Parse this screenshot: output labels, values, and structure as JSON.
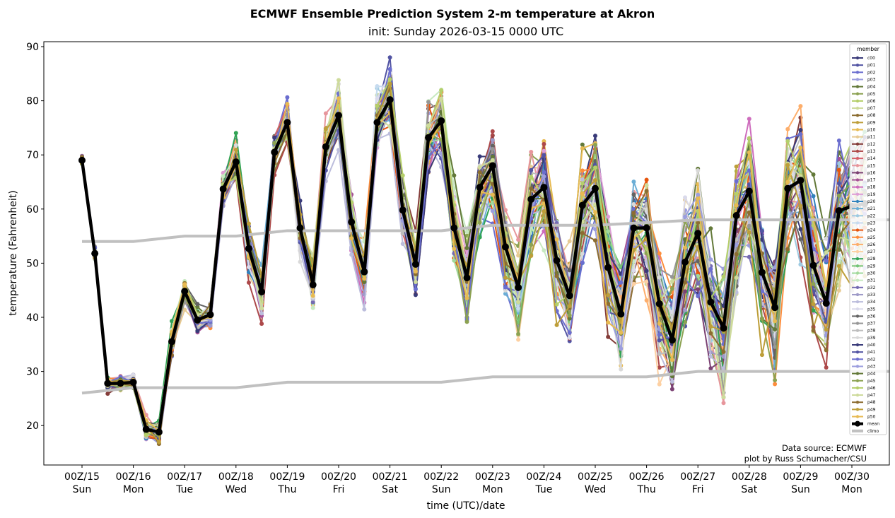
{
  "chart_data": {
    "type": "line",
    "title": "ECMWF Ensemble Prediction System 2-m temperature at Akron",
    "subtitle": "init: Sunday 2026-03-15 0000 UTC",
    "xlabel": "time (UTC)/date",
    "ylabel": "temperature (Fahrenheit)",
    "ylim": [
      13,
      91
    ],
    "xlim_days": [
      -0.6,
      15.9
    ],
    "yticks": [
      20,
      30,
      40,
      50,
      60,
      70,
      80,
      90
    ],
    "xticks": [
      {
        "day": 0,
        "top": "00Z/15",
        "bottom": "Sun"
      },
      {
        "day": 1,
        "top": "00Z/16",
        "bottom": "Mon"
      },
      {
        "day": 2,
        "top": "00Z/17",
        "bottom": "Tue"
      },
      {
        "day": 3,
        "top": "00Z/18",
        "bottom": "Wed"
      },
      {
        "day": 4,
        "top": "00Z/19",
        "bottom": "Thu"
      },
      {
        "day": 5,
        "top": "00Z/20",
        "bottom": "Fri"
      },
      {
        "day": 6,
        "top": "00Z/21",
        "bottom": "Sat"
      },
      {
        "day": 7,
        "top": "00Z/22",
        "bottom": "Sun"
      },
      {
        "day": 8,
        "top": "00Z/23",
        "bottom": "Mon"
      },
      {
        "day": 9,
        "top": "00Z/24",
        "bottom": "Tue"
      },
      {
        "day": 10,
        "top": "00Z/25",
        "bottom": "Wed"
      },
      {
        "day": 11,
        "top": "00Z/26",
        "bottom": "Thu"
      },
      {
        "day": 12,
        "top": "00Z/27",
        "bottom": "Fri"
      },
      {
        "day": 13,
        "top": "00Z/28",
        "bottom": "Sat"
      },
      {
        "day": 14,
        "top": "00Z/29",
        "bottom": "Sun"
      },
      {
        "day": 15,
        "top": "00Z/30",
        "bottom": "Mon"
      }
    ],
    "time_step_hours": 6,
    "grid": false,
    "legend": {
      "title": "member",
      "placement": "right"
    },
    "mean": {
      "name": "mean",
      "color": "#000000",
      "values": [
        69.0,
        51.8,
        27.8,
        27.8,
        28.0,
        19.3,
        18.8,
        35.5,
        44.8,
        39.5,
        40.5,
        63.7,
        68.7,
        52.7,
        44.7,
        70.5,
        76.0,
        56.5,
        46.0,
        71.5,
        77.3,
        57.6,
        48.4,
        76.0,
        80.2,
        59.8,
        49.8,
        73.2,
        76.3,
        56.5,
        47.3,
        64.0,
        68.0,
        53.0,
        45.5,
        61.8,
        64.0,
        50.5,
        44.0,
        60.7,
        63.8,
        49.2,
        40.6,
        56.5,
        56.5,
        42.5,
        35.8,
        50.2,
        55.5,
        42.8,
        38.0,
        58.8,
        63.3,
        48.3,
        41.8,
        63.8,
        65.3,
        49.6,
        42.6,
        59.7,
        60.5,
        61.0
      ]
    },
    "climo": {
      "name": "climo",
      "color": "#c0c0c0",
      "upper_days": [
        0,
        1,
        2,
        3,
        4,
        5,
        6,
        7,
        8,
        9,
        10,
        11,
        12,
        13,
        14,
        15,
        15.8
      ],
      "upper": [
        54,
        54,
        55,
        55,
        56,
        56,
        56,
        56,
        57,
        57,
        57,
        57.5,
        58,
        58,
        58,
        58,
        58
      ],
      "lower_days": [
        0,
        1,
        2,
        3,
        4,
        5,
        6,
        7,
        8,
        9,
        10,
        11,
        12,
        13,
        14,
        15,
        15.8
      ],
      "lower": [
        26,
        27,
        27,
        27,
        28,
        28,
        28,
        28,
        29,
        29,
        29,
        29,
        30,
        30,
        30,
        30,
        30
      ]
    },
    "members": [
      {
        "name": "c00",
        "color": "#393b79"
      },
      {
        "name": "p01",
        "color": "#5254a3"
      },
      {
        "name": "p02",
        "color": "#6b6ecf"
      },
      {
        "name": "p03",
        "color": "#9c9ede"
      },
      {
        "name": "p04",
        "color": "#637939"
      },
      {
        "name": "p05",
        "color": "#8ca252"
      },
      {
        "name": "p06",
        "color": "#b5cf6b"
      },
      {
        "name": "p07",
        "color": "#cedb9c"
      },
      {
        "name": "p08",
        "color": "#8c6d31"
      },
      {
        "name": "p09",
        "color": "#bd9e39"
      },
      {
        "name": "p10",
        "color": "#e7ba52"
      },
      {
        "name": "p11",
        "color": "#e7cb94"
      },
      {
        "name": "p12",
        "color": "#843c39"
      },
      {
        "name": "p13",
        "color": "#ad494a"
      },
      {
        "name": "p14",
        "color": "#d6616b"
      },
      {
        "name": "p15",
        "color": "#e7969c"
      },
      {
        "name": "p16",
        "color": "#7b4173"
      },
      {
        "name": "p17",
        "color": "#a55194"
      },
      {
        "name": "p18",
        "color": "#ce6dbd"
      },
      {
        "name": "p19",
        "color": "#de9ed6"
      },
      {
        "name": "p20",
        "color": "#3182bd"
      },
      {
        "name": "p21",
        "color": "#6baed6"
      },
      {
        "name": "p22",
        "color": "#9ecae1"
      },
      {
        "name": "p23",
        "color": "#c6dbef"
      },
      {
        "name": "p24",
        "color": "#e6550d"
      },
      {
        "name": "p25",
        "color": "#fd8d3c"
      },
      {
        "name": "p26",
        "color": "#fdae6b"
      },
      {
        "name": "p27",
        "color": "#fdd0a2"
      },
      {
        "name": "p28",
        "color": "#31a354"
      },
      {
        "name": "p29",
        "color": "#74c476"
      },
      {
        "name": "p30",
        "color": "#a1d99b"
      },
      {
        "name": "p31",
        "color": "#c7e9c0"
      },
      {
        "name": "p32",
        "color": "#756bb1"
      },
      {
        "name": "p33",
        "color": "#9e9ac8"
      },
      {
        "name": "p34",
        "color": "#bcbddc"
      },
      {
        "name": "p35",
        "color": "#dadaeb"
      },
      {
        "name": "p36",
        "color": "#636363"
      },
      {
        "name": "p37",
        "color": "#969696"
      },
      {
        "name": "p38",
        "color": "#bdbdbd"
      },
      {
        "name": "p39",
        "color": "#d9d9d9"
      },
      {
        "name": "p40",
        "color": "#393b79"
      },
      {
        "name": "p41",
        "color": "#5254a3"
      },
      {
        "name": "p42",
        "color": "#6b6ecf"
      },
      {
        "name": "p43",
        "color": "#9c9ede"
      },
      {
        "name": "p44",
        "color": "#637939"
      },
      {
        "name": "p45",
        "color": "#8ca252"
      },
      {
        "name": "p46",
        "color": "#b5cf6b"
      },
      {
        "name": "p47",
        "color": "#cedb9c"
      },
      {
        "name": "p48",
        "color": "#8c6d31"
      },
      {
        "name": "p49",
        "color": "#bd9e39"
      },
      {
        "name": "p50",
        "color": "#e7ba52"
      }
    ],
    "member_values_note": "individual member traces approximated as spread around the mean",
    "annotations": [
      "Data source: ECMWF",
      "plot by Russ Schumacher/CSU"
    ]
  }
}
